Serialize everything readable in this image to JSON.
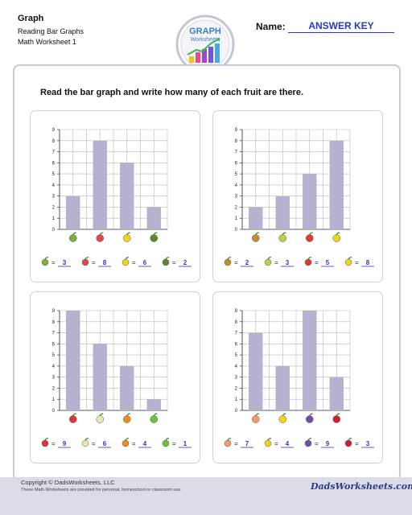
{
  "header": {
    "title": "Graph",
    "subtitle1": "Reading Bar Graphs",
    "subtitle2": "Math Worksheet 1",
    "name_label": "Name:",
    "name_value": "ANSWER KEY",
    "logo_line1": "GRAPH",
    "logo_line2": "Worksheets"
  },
  "instructions": "Read the bar graph and write how many of each fruit are there.",
  "chart_data": [
    {
      "type": "bar",
      "categories": [
        "kiwi",
        "watermelon",
        "lemon",
        "avocado"
      ],
      "values": [
        3,
        8,
        6,
        2
      ],
      "ylim": [
        0,
        9
      ],
      "yticks": [
        0,
        1,
        2,
        3,
        4,
        5,
        6,
        7,
        8,
        9
      ],
      "answers": [
        "3",
        "8",
        "6",
        "2"
      ],
      "icon_colors": [
        "#7fae3a",
        "#d94a4a",
        "#f2d21b",
        "#5a8a2a"
      ]
    },
    {
      "type": "bar",
      "categories": [
        "pineapple",
        "pear",
        "apple",
        "lemon"
      ],
      "values": [
        2,
        3,
        5,
        8
      ],
      "ylim": [
        0,
        9
      ],
      "yticks": [
        0,
        1,
        2,
        3,
        4,
        5,
        6,
        7,
        8,
        9
      ],
      "answers": [
        "2",
        "3",
        "5",
        "8"
      ],
      "icon_colors": [
        "#c98a2a",
        "#b6d24a",
        "#e03b2e",
        "#f2d21b"
      ]
    },
    {
      "type": "bar",
      "categories": [
        "strawberry",
        "melon",
        "orange",
        "green apple"
      ],
      "values": [
        9,
        6,
        4,
        1
      ],
      "ylim": [
        0,
        9
      ],
      "yticks": [
        0,
        1,
        2,
        3,
        4,
        5,
        6,
        7,
        8,
        9
      ],
      "answers": [
        "9",
        "6",
        "4",
        "1"
      ],
      "icon_colors": [
        "#e0333a",
        "#e6eab0",
        "#f28a1e",
        "#6cc23a"
      ]
    },
    {
      "type": "bar",
      "categories": [
        "peach",
        "banana",
        "grapes",
        "cherries"
      ],
      "values": [
        7,
        4,
        9,
        3
      ],
      "ylim": [
        0,
        9
      ],
      "yticks": [
        0,
        1,
        2,
        3,
        4,
        5,
        6,
        7,
        8,
        9
      ],
      "answers": [
        "7",
        "4",
        "9",
        "3"
      ],
      "icon_colors": [
        "#f29a6a",
        "#f2d21b",
        "#7a4aa8",
        "#d21e2e"
      ]
    }
  ],
  "colors": {
    "bar": "#b3b3d0",
    "answer": "#2b37c9",
    "grid": "#b8b8b8"
  },
  "footer": {
    "copyright": "Copyright © DadsWorksheets, LLC",
    "note": "These Math Worksheets are provided for personal, homeschool or classroom use.",
    "brand": "DadsWorksheets.com"
  }
}
